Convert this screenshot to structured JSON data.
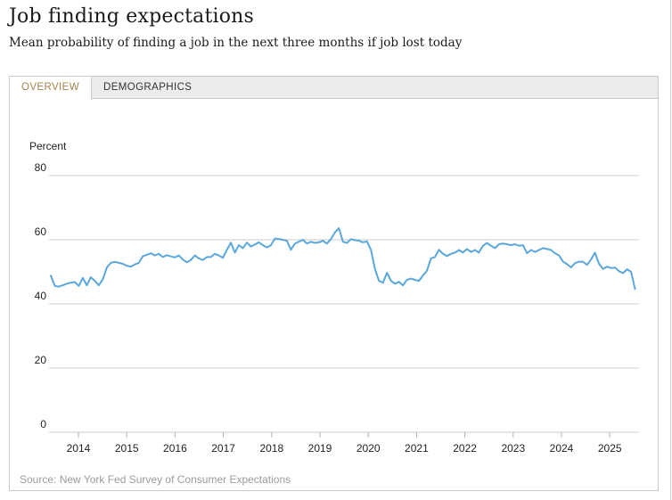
{
  "header": {
    "title": "Job finding expectations",
    "subtitle": "Mean probability of finding a job in the next three months if job lost today"
  },
  "tabs": [
    {
      "label": "OVERVIEW",
      "active": true
    },
    {
      "label": "DEMOGRAPHICS",
      "active": false
    }
  ],
  "source": "Source: New York Fed Survey of Consumer Expectations",
  "colors": {
    "line": "#5AA7DC",
    "grid": "#c9c9c9",
    "tick": "#b5b5b5",
    "axis_text": "#222222",
    "active_tab_text": "#A5824B",
    "tab_bar_bg": "#ECECEC",
    "source_text": "#9B9B9B"
  },
  "chart_data": {
    "type": "line",
    "title": "Job finding expectations",
    "subtitle": "Mean probability of finding a job in the next three months if job lost today",
    "ylabel": "Percent",
    "xlabel": "",
    "y_ticks": [
      0,
      20,
      40,
      60,
      80
    ],
    "ylim": [
      0,
      86
    ],
    "grid": "horizontal",
    "legend": "none",
    "x_years": [
      2014,
      2015,
      2016,
      2017,
      2018,
      2019,
      2020,
      2021,
      2022,
      2023,
      2024,
      2025
    ],
    "series": [
      {
        "name": "Mean probability of finding a job in the next three months if job lost today",
        "start": "2013-06",
        "frequency": "monthly",
        "values": [
          48.8,
          45.6,
          45.4,
          45.8,
          46.3,
          46.6,
          46.8,
          45.6,
          48.1,
          45.8,
          48.3,
          47.2,
          45.8,
          47.7,
          51.4,
          52.8,
          53.1,
          52.8,
          52.5,
          51.9,
          51.6,
          52.3,
          52.8,
          54.9,
          55.3,
          55.8,
          55.1,
          55.6,
          54.6,
          55.2,
          54.8,
          54.5,
          55.1,
          53.8,
          53.0,
          53.7,
          55.1,
          54.2,
          53.7,
          54.6,
          54.6,
          55.6,
          55.1,
          54.4,
          56.9,
          59.1,
          56.0,
          58.3,
          57.4,
          59.1,
          57.9,
          58.5,
          59.2,
          58.3,
          57.6,
          58.3,
          60.4,
          60.2,
          60.0,
          59.7,
          56.9,
          58.8,
          59.4,
          60.0,
          58.8,
          59.4,
          59.0,
          59.2,
          59.7,
          58.8,
          60.2,
          62.3,
          63.6,
          59.4,
          59.0,
          60.2,
          59.9,
          59.7,
          59.2,
          59.5,
          56.9,
          50.9,
          47.2,
          46.6,
          49.7,
          47.2,
          46.3,
          46.9,
          45.8,
          47.5,
          47.9,
          47.5,
          47.2,
          48.9,
          50.4,
          54.2,
          54.6,
          56.9,
          55.6,
          54.9,
          55.6,
          56.0,
          56.8,
          56.0,
          57.1,
          56.2,
          56.8,
          56.0,
          58.1,
          59.0,
          58.1,
          57.4,
          58.6,
          58.8,
          58.6,
          58.3,
          58.6,
          58.1,
          58.3,
          55.8,
          56.8,
          56.2,
          56.8,
          57.4,
          57.1,
          56.8,
          55.8,
          55.1,
          53.2,
          52.4,
          51.4,
          52.7,
          53.2,
          53.1,
          52.2,
          53.8,
          56.0,
          52.5,
          50.9,
          51.6,
          51.2,
          51.3,
          50.2,
          49.6,
          50.8,
          50.0,
          44.7
        ]
      }
    ]
  }
}
